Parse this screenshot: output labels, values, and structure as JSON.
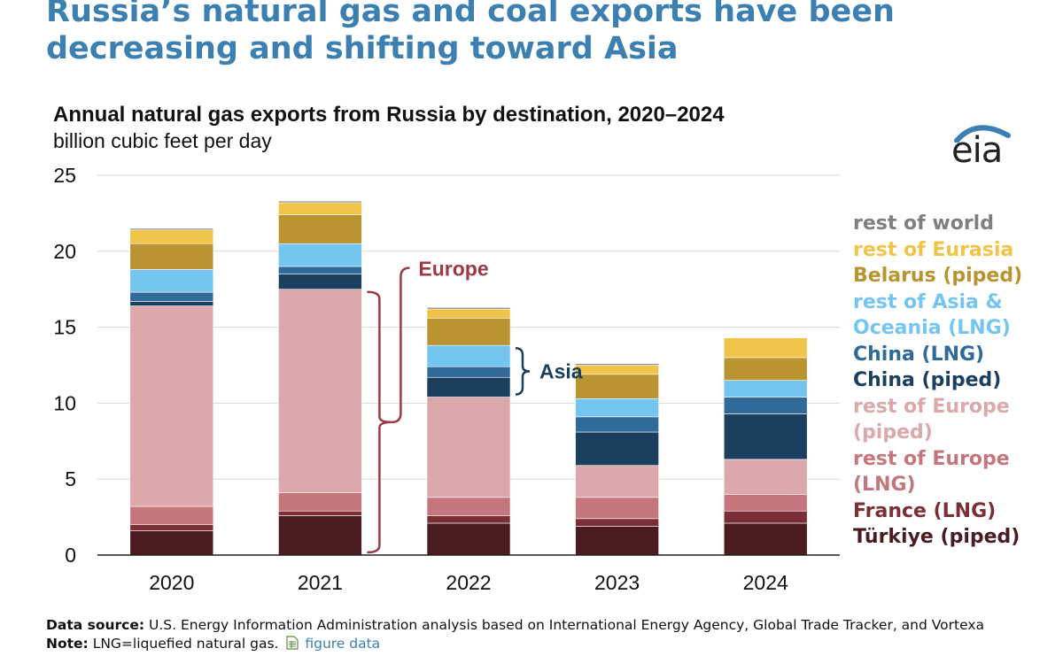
{
  "headline": "Russia’s natural gas and coal exports have been decreasing and shifting toward Asia",
  "logo_text": "eia",
  "footer": {
    "source_label": "Data source:",
    "source_text": "U.S. Energy Information Administration analysis based on International Energy Agency, Global Trade Tracker, and Vortexa",
    "note_label": "Note:",
    "note_text": "LNG=liquefied natural gas.",
    "link_text": "figure data",
    "link_icon": "spreadsheet-icon"
  },
  "chart_data": {
    "type": "bar",
    "stacked": true,
    "title": "Annual natural gas exports from Russia by destination, 2020–2024",
    "ylabel": "billion cubic feet per day",
    "xlabel": "",
    "ylim": [
      0,
      25
    ],
    "yticks": [
      0,
      5,
      10,
      15,
      20,
      25
    ],
    "grid": true,
    "categories": [
      "2020",
      "2021",
      "2022",
      "2023",
      "2024"
    ],
    "series": [
      {
        "name": "Türkiye (piped)",
        "color": "#4a1c1f",
        "values": [
          1.6,
          2.6,
          2.1,
          1.9,
          2.1
        ]
      },
      {
        "name": "France (LNG)",
        "color": "#7b2f34",
        "values": [
          0.4,
          0.3,
          0.5,
          0.5,
          0.8
        ]
      },
      {
        "name": "rest of Europe (LNG)",
        "color": "#c5767c",
        "values": [
          1.2,
          1.2,
          1.2,
          1.4,
          1.1
        ]
      },
      {
        "name": "rest of Europe (piped)",
        "color": "#dca8ac",
        "values": [
          13.2,
          13.4,
          6.6,
          2.1,
          2.3
        ]
      },
      {
        "name": "China (piped)",
        "color": "#1a3f5f",
        "values": [
          0.3,
          1.0,
          1.3,
          2.2,
          3.0
        ]
      },
      {
        "name": "China (LNG)",
        "color": "#2f6a98",
        "values": [
          0.6,
          0.5,
          0.7,
          1.0,
          1.1
        ]
      },
      {
        "name": "rest of Asia & Oceania (LNG)",
        "color": "#74c6f0",
        "values": [
          1.5,
          1.5,
          1.4,
          1.2,
          1.1
        ]
      },
      {
        "name": "Belarus (piped)",
        "color": "#b99430",
        "values": [
          1.7,
          1.9,
          1.8,
          1.6,
          1.5
        ]
      },
      {
        "name": "rest of Eurasia",
        "color": "#efc448",
        "values": [
          0.9,
          0.8,
          0.6,
          0.6,
          1.3
        ]
      },
      {
        "name": "rest of world",
        "color": "#7f7f7f",
        "values": [
          0.1,
          0.1,
          0.1,
          0.1,
          0.0
        ]
      }
    ],
    "legend_order": [
      {
        "label": "rest of world",
        "color": "#7f7f7f"
      },
      {
        "label": "rest of Eurasia",
        "color": "#efc448"
      },
      {
        "label": "Belarus (piped)",
        "color": "#b99430"
      },
      {
        "label": "rest of Asia &\n  Oceania (LNG)",
        "color": "#74c6f0"
      },
      {
        "label": "China (LNG)",
        "color": "#2f6a98"
      },
      {
        "label": "China (piped)",
        "color": "#1a3f5f"
      },
      {
        "label": "rest of Europe\n(piped)",
        "color": "#dca8ac"
      },
      {
        "label": "rest of Europe\n(LNG)",
        "color": "#c5767c"
      },
      {
        "label": "France (LNG)",
        "color": "#7b2f34"
      },
      {
        "label": "Türkiye (piped)",
        "color": "#4a1c1f"
      }
    ],
    "legend_position": "right",
    "annotations": [
      {
        "text": "Europe",
        "color": "#9b3a44",
        "category": "2021",
        "from_series": 0,
        "to_series": 3
      },
      {
        "text": "Asia",
        "color": "#1a3f5f",
        "category": "2022",
        "from_series": 4,
        "to_series": 6
      }
    ]
  }
}
